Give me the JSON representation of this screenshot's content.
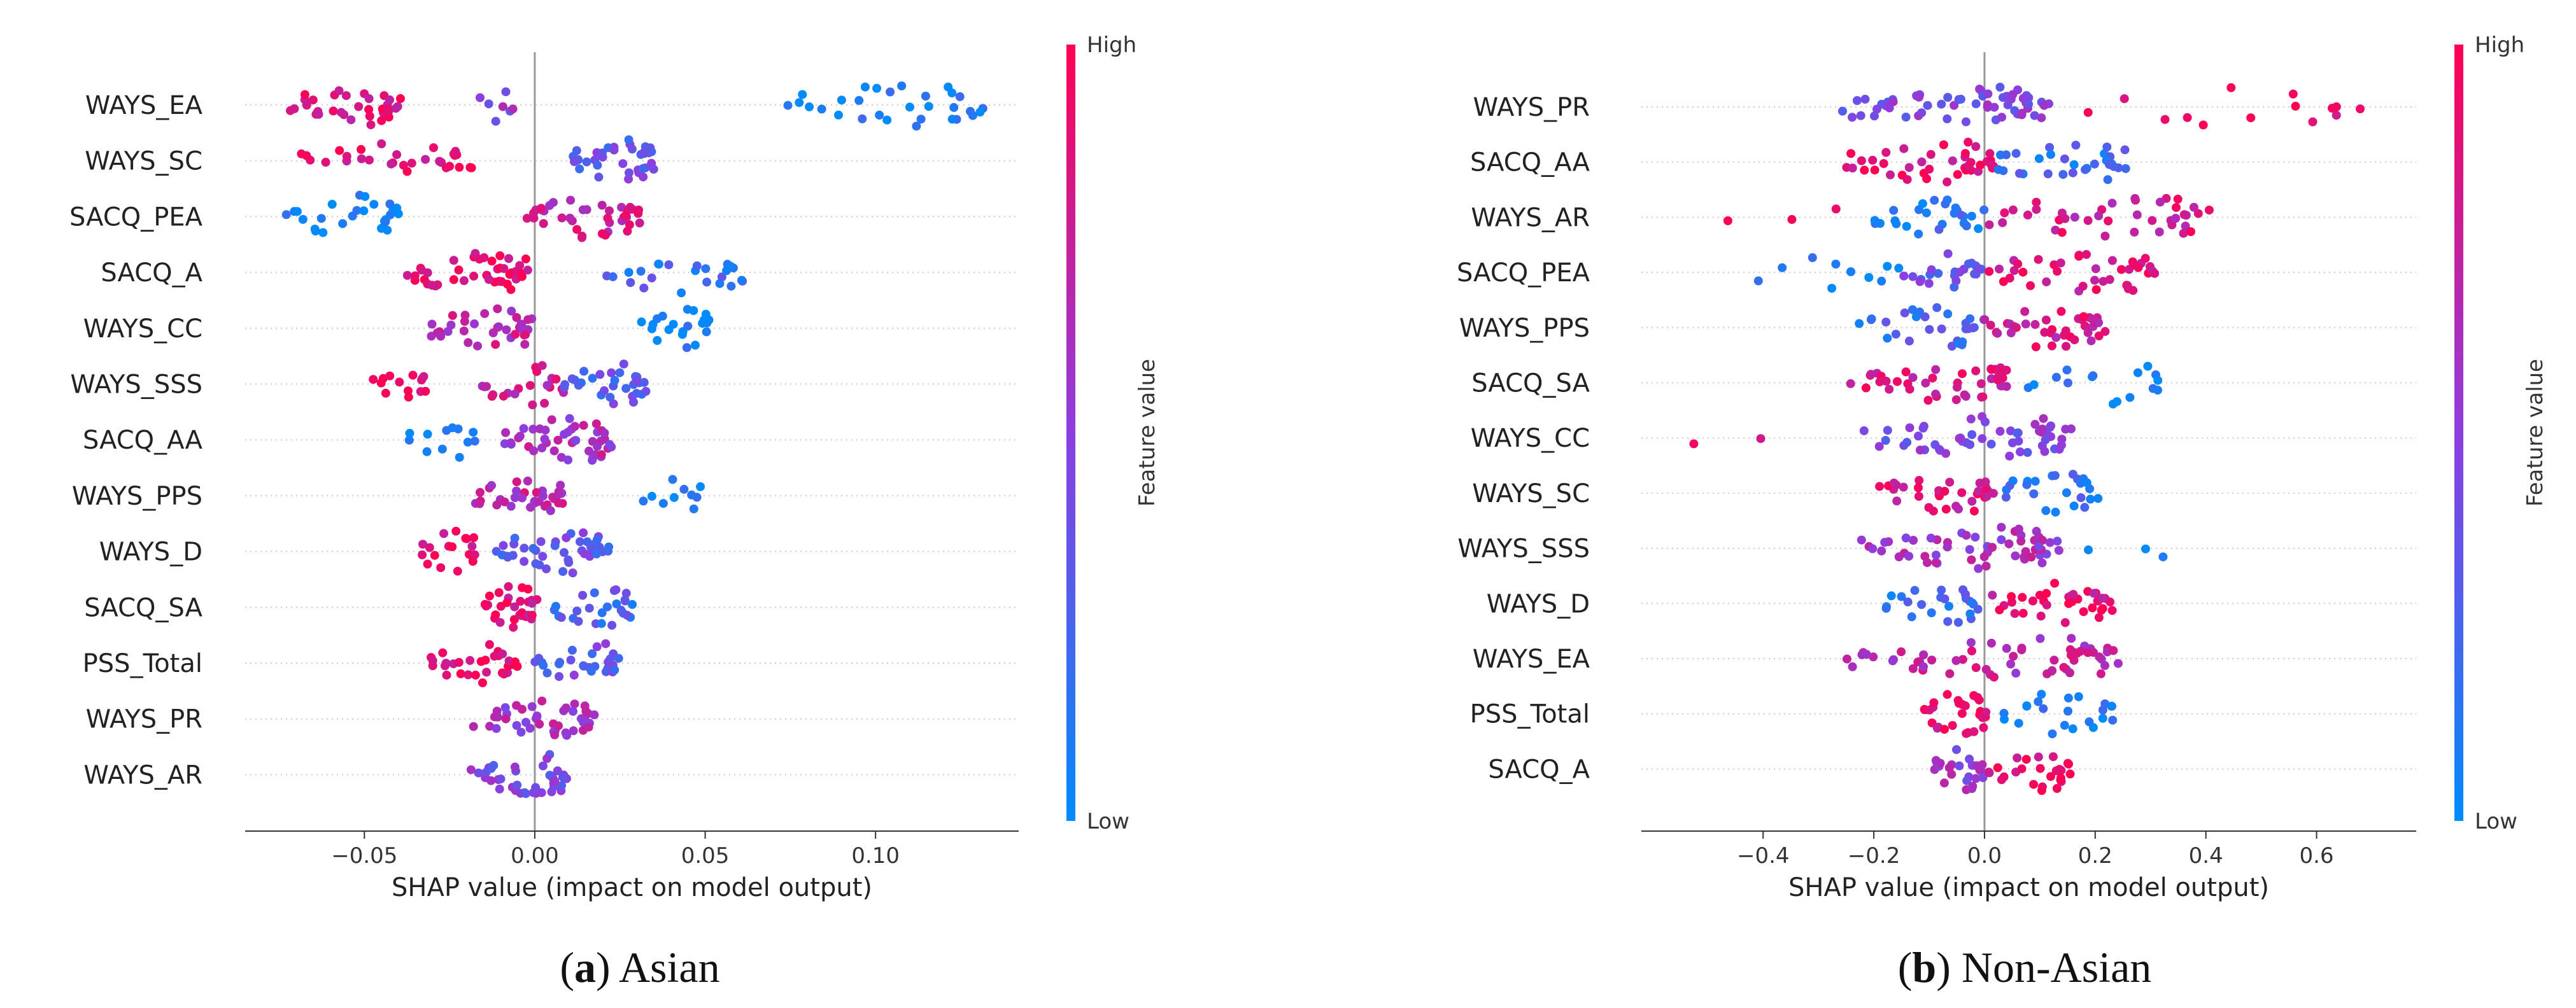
{
  "chart_data": [
    {
      "type": "scatter",
      "subtype": "shap-beeswarm",
      "caption_letter": "a",
      "caption_text": "Asian",
      "xlabel": "SHAP value (impact on model output)",
      "xlim": [
        -0.085,
        0.142
      ],
      "xticks": [
        -0.05,
        0.0,
        0.05,
        0.1
      ],
      "xtick_labels": [
        "−0.05",
        "0.00",
        "0.05",
        "0.10"
      ],
      "colorbar": {
        "label": "Feature value",
        "high": "High",
        "low": "Low"
      },
      "features": [
        {
          "name": "WAYS_EA",
          "groups": [
            {
              "min": -0.073,
              "max": -0.038,
              "n": 34,
              "fv": 0.85
            },
            {
              "min": -0.017,
              "max": -0.006,
              "n": 7,
              "fv": 0.5
            },
            {
              "min": 0.072,
              "max": 0.132,
              "n": 30,
              "fv": 0.05
            }
          ]
        },
        {
          "name": "WAYS_SC",
          "groups": [
            {
              "min": -0.071,
              "max": -0.017,
              "n": 30,
              "fv": 0.9
            },
            {
              "min": 0.009,
              "max": 0.036,
              "n": 36,
              "fv": 0.35
            }
          ]
        },
        {
          "name": "SACQ_PEA",
          "groups": [
            {
              "min": -0.075,
              "max": -0.038,
              "n": 26,
              "fv": 0.05
            },
            {
              "min": -0.006,
              "max": 0.032,
              "n": 40,
              "fv": 0.75
            }
          ]
        },
        {
          "name": "SACQ_A",
          "groups": [
            {
              "min": -0.04,
              "max": -0.001,
              "n": 42,
              "fv": 0.92
            },
            {
              "min": 0.017,
              "max": 0.062,
              "n": 24,
              "fv": 0.2
            }
          ]
        },
        {
          "name": "WAYS_CC",
          "groups": [
            {
              "min": -0.033,
              "max": 0.001,
              "n": 36,
              "fv": 0.7
            },
            {
              "min": 0.031,
              "max": 0.052,
              "n": 22,
              "fv": 0.03
            }
          ]
        },
        {
          "name": "WAYS_SSS",
          "groups": [
            {
              "min": -0.049,
              "max": -0.031,
              "n": 14,
              "fv": 0.95
            },
            {
              "min": -0.019,
              "max": 0.009,
              "n": 22,
              "fv": 0.75
            },
            {
              "min": 0.008,
              "max": 0.033,
              "n": 30,
              "fv": 0.3
            }
          ]
        },
        {
          "name": "SACQ_AA",
          "groups": [
            {
              "min": -0.039,
              "max": -0.017,
              "n": 12,
              "fv": 0.05
            },
            {
              "min": -0.011,
              "max": 0.023,
              "n": 46,
              "fv": 0.62
            }
          ]
        },
        {
          "name": "WAYS_PPS",
          "groups": [
            {
              "min": -0.019,
              "max": 0.009,
              "n": 36,
              "fv": 0.7
            },
            {
              "min": 0.031,
              "max": 0.049,
              "n": 10,
              "fv": 0.05
            }
          ]
        },
        {
          "name": "WAYS_D",
          "groups": [
            {
              "min": -0.035,
              "max": -0.017,
              "n": 18,
              "fv": 0.92
            },
            {
              "min": -0.013,
              "max": 0.022,
              "n": 44,
              "fv": 0.35
            }
          ]
        },
        {
          "name": "SACQ_SA",
          "groups": [
            {
              "min": -0.016,
              "max": 0.001,
              "n": 30,
              "fv": 0.85
            },
            {
              "min": 0.004,
              "max": 0.03,
              "n": 26,
              "fv": 0.25
            }
          ]
        },
        {
          "name": "PSS_Total",
          "groups": [
            {
              "min": -0.034,
              "max": -0.005,
              "n": 30,
              "fv": 0.88
            },
            {
              "min": -0.001,
              "max": 0.026,
              "n": 30,
              "fv": 0.35
            }
          ]
        },
        {
          "name": "WAYS_PR",
          "groups": [
            {
              "min": -0.018,
              "max": 0.018,
              "n": 44,
              "fv": 0.6
            }
          ]
        },
        {
          "name": "WAYS_AR",
          "groups": [
            {
              "min": -0.019,
              "max": 0.01,
              "n": 40,
              "fv": 0.45
            }
          ]
        }
      ]
    },
    {
      "type": "scatter",
      "subtype": "shap-beeswarm",
      "caption_letter": "b",
      "caption_text": "Non-Asian",
      "xlabel": "SHAP value (impact on model output)",
      "xlim": [
        -0.62,
        0.78
      ],
      "xticks": [
        -0.4,
        -0.2,
        0.0,
        0.2,
        0.4,
        0.6
      ],
      "xtick_labels": [
        "−0.4",
        "−0.2",
        "0.0",
        "0.2",
        "0.4",
        "0.6"
      ],
      "colorbar": {
        "label": "Feature value",
        "high": "High",
        "low": "Low"
      },
      "features": [
        {
          "name": "WAYS_PR",
          "groups": [
            {
              "min": -0.28,
              "max": 0.12,
              "n": 60,
              "fv": 0.45
            },
            {
              "min": 0.18,
              "max": 0.7,
              "n": 14,
              "fv": 0.92
            }
          ]
        },
        {
          "name": "SACQ_AA",
          "groups": [
            {
              "min": -0.26,
              "max": 0.02,
              "n": 40,
              "fv": 0.88
            },
            {
              "min": 0.0,
              "max": 0.26,
              "n": 30,
              "fv": 0.2
            }
          ]
        },
        {
          "name": "WAYS_AR",
          "groups": [
            {
              "min": -0.5,
              "max": -0.25,
              "n": 3,
              "fv": 0.95
            },
            {
              "min": -0.22,
              "max": 0.0,
              "n": 26,
              "fv": 0.15
            },
            {
              "min": 0.0,
              "max": 0.41,
              "n": 40,
              "fv": 0.8
            }
          ]
        },
        {
          "name": "SACQ_PEA",
          "groups": [
            {
              "min": -0.41,
              "max": -0.15,
              "n": 10,
              "fv": 0.05
            },
            {
              "min": -0.15,
              "max": 0.0,
              "n": 22,
              "fv": 0.35
            },
            {
              "min": 0.0,
              "max": 0.31,
              "n": 40,
              "fv": 0.85
            }
          ]
        },
        {
          "name": "WAYS_PPS",
          "groups": [
            {
              "min": -0.23,
              "max": 0.0,
              "n": 28,
              "fv": 0.2
            },
            {
              "min": 0.0,
              "max": 0.22,
              "n": 40,
              "fv": 0.82
            }
          ]
        },
        {
          "name": "SACQ_SA",
          "groups": [
            {
              "min": -0.25,
              "max": 0.06,
              "n": 44,
              "fv": 0.8
            },
            {
              "min": 0.06,
              "max": 0.34,
              "n": 16,
              "fv": 0.05
            }
          ]
        },
        {
          "name": "WAYS_CC",
          "groups": [
            {
              "min": -0.53,
              "max": -0.4,
              "n": 2,
              "fv": 0.95
            },
            {
              "min": -0.22,
              "max": 0.16,
              "n": 54,
              "fv": 0.45
            }
          ]
        },
        {
          "name": "WAYS_SC",
          "groups": [
            {
              "min": -0.2,
              "max": 0.02,
              "n": 34,
              "fv": 0.85
            },
            {
              "min": 0.02,
              "max": 0.21,
              "n": 24,
              "fv": 0.15
            }
          ]
        },
        {
          "name": "WAYS_SSS",
          "groups": [
            {
              "min": -0.23,
              "max": 0.14,
              "n": 56,
              "fv": 0.6
            },
            {
              "min": 0.16,
              "max": 0.35,
              "n": 3,
              "fv": 0.05
            }
          ]
        },
        {
          "name": "WAYS_D",
          "groups": [
            {
              "min": -0.19,
              "max": 0.0,
              "n": 24,
              "fv": 0.2
            },
            {
              "min": 0.0,
              "max": 0.24,
              "n": 36,
              "fv": 0.85
            }
          ]
        },
        {
          "name": "WAYS_EA",
          "groups": [
            {
              "min": -0.28,
              "max": 0.25,
              "n": 60,
              "fv": 0.7
            }
          ]
        },
        {
          "name": "PSS_Total",
          "groups": [
            {
              "min": -0.12,
              "max": 0.01,
              "n": 30,
              "fv": 0.9
            },
            {
              "min": 0.01,
              "max": 0.24,
              "n": 22,
              "fv": 0.05
            }
          ]
        },
        {
          "name": "SACQ_A",
          "groups": [
            {
              "min": -0.1,
              "max": 0.0,
              "n": 24,
              "fv": 0.55
            },
            {
              "min": 0.0,
              "max": 0.16,
              "n": 26,
              "fv": 0.88
            }
          ]
        }
      ]
    }
  ]
}
